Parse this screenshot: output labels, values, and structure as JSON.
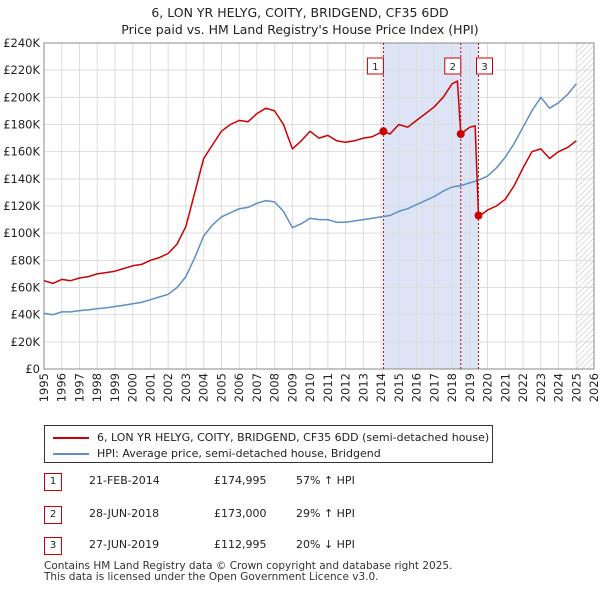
{
  "chart_data": {
    "type": "line",
    "title": "6, LON YR HELYG, COITY, BRIDGEND, CF35 6DD",
    "subtitle": "Price paid vs. HM Land Registry's House Price Index (HPI)",
    "xlabel": "",
    "ylabel": "",
    "xlim": [
      1995,
      2026
    ],
    "ylim": [
      0,
      240000
    ],
    "x_ticks": [
      "1995",
      "1996",
      "1997",
      "1998",
      "1999",
      "2000",
      "2001",
      "2002",
      "2003",
      "2004",
      "2005",
      "2006",
      "2007",
      "2008",
      "2009",
      "2010",
      "2011",
      "2012",
      "2013",
      "2014",
      "2015",
      "2016",
      "2017",
      "2018",
      "2019",
      "2020",
      "2021",
      "2022",
      "2023",
      "2024",
      "2025",
      "2026"
    ],
    "y_ticks": [
      "£0",
      "£20K",
      "£40K",
      "£60K",
      "£80K",
      "£100K",
      "£120K",
      "£140K",
      "£160K",
      "£180K",
      "£200K",
      "£220K",
      "£240K"
    ],
    "series": [
      {
        "name": "6, LON YR HELYG, COITY, BRIDGEND, CF35 6DD (semi-detached house)",
        "color": "#cc0000",
        "x": [
          1995.0,
          1995.5,
          1996.0,
          1996.5,
          1997.0,
          1997.5,
          1998.0,
          1998.5,
          1999.0,
          1999.5,
          2000.0,
          2000.5,
          2001.0,
          2001.5,
          2002.0,
          2002.5,
          2003.0,
          2003.5,
          2004.0,
          2004.5,
          2005.0,
          2005.5,
          2006.0,
          2006.5,
          2007.0,
          2007.5,
          2008.0,
          2008.5,
          2009.0,
          2009.5,
          2010.0,
          2010.5,
          2011.0,
          2011.5,
          2012.0,
          2012.5,
          2013.0,
          2013.5,
          2014.13,
          2014.5,
          2015.0,
          2015.5,
          2016.0,
          2016.5,
          2017.0,
          2017.5,
          2018.0,
          2018.3,
          2018.49,
          2018.8,
          2019.0,
          2019.3,
          2019.49,
          2019.8,
          2020.0,
          2020.5,
          2021.0,
          2021.5,
          2022.0,
          2022.5,
          2023.0,
          2023.5,
          2024.0,
          2024.5,
          2025.0
        ],
        "values": [
          65000,
          63000,
          66000,
          65000,
          67000,
          68000,
          70000,
          71000,
          72000,
          74000,
          76000,
          77000,
          80000,
          82000,
          85000,
          92000,
          105000,
          130000,
          155000,
          165000,
          175000,
          180000,
          183000,
          182000,
          188000,
          192000,
          190000,
          180000,
          162000,
          168000,
          175000,
          170000,
          172000,
          168000,
          167000,
          168000,
          170000,
          171000,
          174995,
          173000,
          180000,
          178000,
          183000,
          188000,
          193000,
          200000,
          210000,
          212000,
          173000,
          176000,
          178000,
          179000,
          112995,
          115000,
          117000,
          120000,
          125000,
          135000,
          148000,
          160000,
          162000,
          155000,
          160000,
          163000,
          168000
        ]
      },
      {
        "name": "HPI: Average price, semi-detached house, Bridgend",
        "color": "#5b8fc7",
        "x": [
          1995.0,
          1995.5,
          1996.0,
          1996.5,
          1997.0,
          1997.5,
          1998.0,
          1998.5,
          1999.0,
          1999.5,
          2000.0,
          2000.5,
          2001.0,
          2001.5,
          2002.0,
          2002.5,
          2003.0,
          2003.5,
          2004.0,
          2004.5,
          2005.0,
          2005.5,
          2006.0,
          2006.5,
          2007.0,
          2007.5,
          2008.0,
          2008.5,
          2009.0,
          2009.5,
          2010.0,
          2010.5,
          2011.0,
          2011.5,
          2012.0,
          2012.5,
          2013.0,
          2013.5,
          2014.0,
          2014.5,
          2015.0,
          2015.5,
          2016.0,
          2016.5,
          2017.0,
          2017.5,
          2018.0,
          2018.5,
          2019.0,
          2019.5,
          2020.0,
          2020.5,
          2021.0,
          2021.5,
          2022.0,
          2022.5,
          2023.0,
          2023.5,
          2024.0,
          2024.5,
          2025.0
        ],
        "values": [
          41000,
          40000,
          42000,
          42000,
          43000,
          43500,
          44500,
          45000,
          46000,
          47000,
          48000,
          49000,
          51000,
          53000,
          55000,
          60000,
          68000,
          82000,
          98000,
          106000,
          112000,
          115000,
          118000,
          119000,
          122000,
          124000,
          123000,
          116000,
          104000,
          107000,
          111000,
          110000,
          110000,
          108000,
          108000,
          109000,
          110000,
          111000,
          112000,
          113000,
          116000,
          118000,
          121000,
          124000,
          127000,
          131000,
          134000,
          135000,
          137000,
          139000,
          142000,
          148000,
          156000,
          166000,
          178000,
          190000,
          200000,
          192000,
          196000,
          202000,
          210000
        ]
      }
    ],
    "annotations": [
      {
        "label": "1",
        "x": 2014.13,
        "value": 174995
      },
      {
        "label": "2",
        "x": 2018.49,
        "value": 173000
      },
      {
        "label": "3",
        "x": 2019.49,
        "value": 112995
      }
    ],
    "shaded_range": [
      2014.13,
      2019.49
    ],
    "hatched_from": 2025.0,
    "grid": true
  },
  "legend": {
    "price_label": "6, LON YR HELYG, COITY, BRIDGEND, CF35 6DD (semi-detached house)",
    "hpi_label": "HPI: Average price, semi-detached house, Bridgend"
  },
  "transactions": [
    {
      "num": "1",
      "date": "21-FEB-2014",
      "price": "£174,995",
      "hpi": "57% ↑ HPI"
    },
    {
      "num": "2",
      "date": "28-JUN-2018",
      "price": "£173,000",
      "hpi": "29% ↑ HPI"
    },
    {
      "num": "3",
      "date": "27-JUN-2019",
      "price": "£112,995",
      "hpi": "20% ↓ HPI"
    }
  ],
  "footer": {
    "line1": "Contains HM Land Registry data © Crown copyright and database right 2025.",
    "line2": "This data is licensed under the Open Government Licence v3.0."
  },
  "colors": {
    "price": "#cc0000",
    "hpi": "#5b8fc7",
    "shade": "#dde4f6",
    "grid": "#dddddd"
  }
}
